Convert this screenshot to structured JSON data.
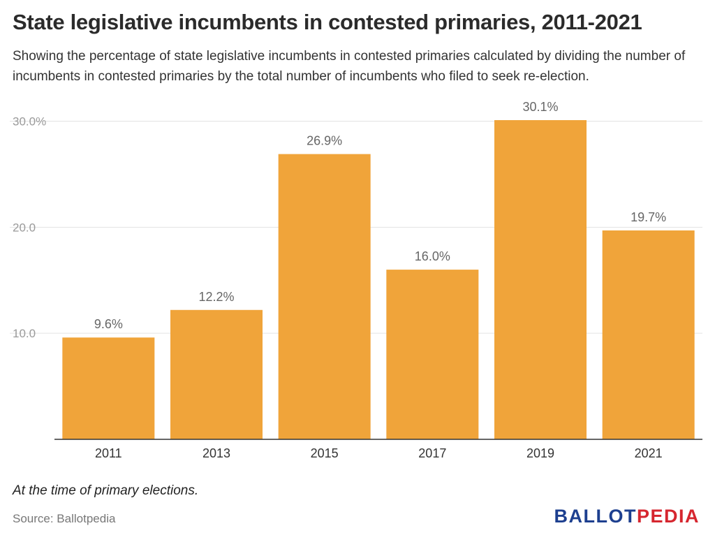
{
  "title": "State legislative incumbents in contested primaries, 2011-2021",
  "subtitle": "Showing the percentage of state legislative incumbents in contested primaries calculated by dividing the number of incumbents in contested primaries by the total number of incumbents who filed to seek re-election.",
  "note": "At the time of primary elections.",
  "source": "Source: Ballotpedia",
  "logo": {
    "part1": "BALLOT",
    "part2": "PEDIA"
  },
  "colors": {
    "bar": "#f0a43a",
    "grid": "#e3e3e3",
    "axis": "#333333",
    "logo_blue": "#1d3f8f",
    "logo_red": "#d6262f"
  },
  "chart_data": {
    "type": "bar",
    "categories": [
      "2011",
      "2013",
      "2015",
      "2017",
      "2019",
      "2021"
    ],
    "values": [
      9.6,
      12.2,
      26.9,
      16.0,
      30.1,
      19.7
    ],
    "data_labels": [
      "9.6%",
      "12.2%",
      "26.9%",
      "16.0%",
      "30.1%",
      "19.7%"
    ],
    "yticks": [
      10,
      20,
      30
    ],
    "ytick_labels": [
      "10.0",
      "20.0",
      "30.0%"
    ],
    "ylim": [
      0,
      30.1
    ],
    "grid": true,
    "xlabel": "",
    "ylabel": ""
  }
}
